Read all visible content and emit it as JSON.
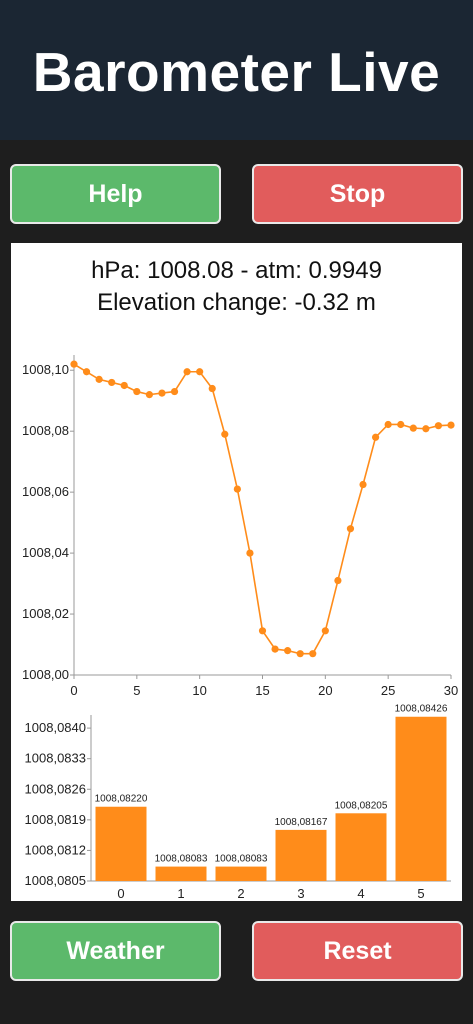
{
  "header": {
    "title": "Barometer Live"
  },
  "buttons": {
    "help": "Help",
    "stop": "Stop",
    "weather": "Weather",
    "reset": "Reset"
  },
  "readout": {
    "pressure_line": "hPa: 1008.08 - atm: 0.9949",
    "elevation_line": "Elevation change: -0.32 m"
  },
  "colors": {
    "header_bg": "#1b2633",
    "app_bg": "#1e1e1e",
    "accent": "#ff8c1a",
    "green": "#5cb96b",
    "red": "#e15c5c"
  },
  "chart_data": [
    {
      "type": "line",
      "x": [
        0,
        1,
        2,
        3,
        4,
        5,
        6,
        7,
        8,
        9,
        10,
        11,
        12,
        13,
        14,
        15,
        16,
        17,
        18,
        19,
        20,
        21,
        22,
        23,
        24,
        25,
        26,
        27,
        28,
        29,
        30
      ],
      "y": [
        1008.102,
        1008.0995,
        1008.097,
        1008.096,
        1008.095,
        1008.093,
        1008.092,
        1008.0925,
        1008.093,
        1008.0995,
        1008.0995,
        1008.094,
        1008.079,
        1008.061,
        1008.04,
        1008.0145,
        1008.0085,
        1008.008,
        1008.007,
        1008.007,
        1008.0145,
        1008.031,
        1008.048,
        1008.0625,
        1008.078,
        1008.0822,
        1008.0822,
        1008.081,
        1008.0808,
        1008.0818,
        1008.082
      ],
      "xlim": [
        0,
        30
      ],
      "ylim": [
        1008.0,
        1008.105
      ],
      "x_ticks": [
        "0",
        "5",
        "10",
        "15",
        "20",
        "25",
        "30"
      ],
      "y_ticks": [
        "1008,00",
        "1008,02",
        "1008,04",
        "1008,06",
        "1008,08",
        "1008,10"
      ],
      "grid": false
    },
    {
      "type": "bar",
      "categories": [
        "0",
        "1",
        "2",
        "3",
        "4",
        "5"
      ],
      "values": [
        1008.0822,
        1008.08083,
        1008.08083,
        1008.08167,
        1008.08205,
        1008.08426
      ],
      "value_labels": [
        "1008,08220",
        "1008,08083",
        "1008,08083",
        "1008,08167",
        "1008,08205",
        "1008,08426"
      ],
      "ylim": [
        1008.0805,
        1008.0843
      ],
      "y_ticks": [
        "1008,0805",
        "1008,0812",
        "1008,0819",
        "1008,0826",
        "1008,0833",
        "1008,0840"
      ],
      "grid": false
    }
  ]
}
